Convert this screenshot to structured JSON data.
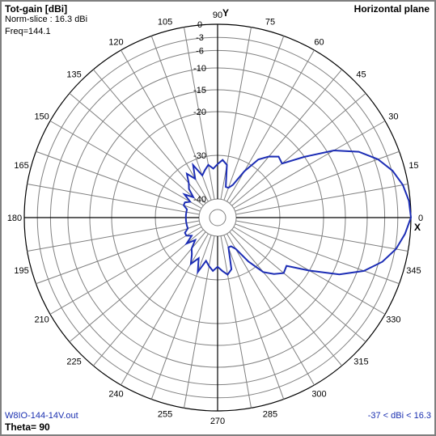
{
  "header": {
    "title": "Tot-gain [dBi]",
    "norm_slice": "Norm-slice : 16.3 dBi",
    "freq": "Freq=144.1",
    "plane": "Horizontal plane"
  },
  "footer": {
    "file": "W8IO-144-14V.out",
    "range": "-37 < dBi < 16.3",
    "theta": "Theta= 90"
  },
  "colors": {
    "pattern": "#1c2db5",
    "grid": "#808080",
    "axis": "#000000"
  },
  "chart_data": {
    "type": "polar",
    "title": "Tot-gain [dBi]",
    "plane": "Horizontal plane",
    "radial_unit": "dB relative to 16.3 dBi",
    "radial_ticks": [
      "0",
      "-3",
      "-6",
      "-10",
      "-15",
      "-20",
      "-30",
      "-40"
    ],
    "angle_ticks": [
      "0",
      "15",
      "30",
      "45",
      "60",
      "75",
      "90",
      "105",
      "120",
      "135",
      "150",
      "165",
      "180",
      "195",
      "210",
      "225",
      "240",
      "255",
      "270",
      "285",
      "300",
      "315",
      "330",
      "345"
    ],
    "axis_labels": {
      "x": "X",
      "y": "Y"
    },
    "series": [
      {
        "angles": [
          0,
          5,
          10,
          15,
          20,
          25,
          30,
          35,
          40,
          45,
          50,
          55,
          60,
          65,
          70,
          75,
          80,
          85,
          90,
          95,
          100,
          105,
          110,
          115,
          120,
          125,
          130,
          135,
          140,
          145,
          150,
          155,
          160,
          165,
          170,
          175,
          180,
          185,
          190,
          195,
          200,
          205,
          210,
          215,
          220,
          225,
          230,
          235,
          240,
          245,
          250,
          255,
          260,
          265,
          270,
          275,
          280,
          285,
          290,
          295,
          300,
          305,
          310,
          315,
          320,
          325,
          330,
          335,
          340,
          345,
          350,
          355
        ],
        "values": [
          0,
          -0.3,
          -1.2,
          -2.8,
          -5.2,
          -8.6,
          -13.5,
          -20,
          -25,
          -24.5,
          -26,
          -28,
          -32,
          -36,
          -37,
          -37,
          -32,
          -31,
          -32,
          -33,
          -32,
          -33,
          -34,
          -31,
          -34,
          -32,
          -34,
          -35,
          -37,
          -35,
          -37,
          -36,
          -36,
          -37,
          -37,
          -37,
          -37,
          -37,
          -37,
          -37,
          -37,
          -36,
          -36,
          -37,
          -35,
          -37,
          -35,
          -34,
          -32,
          -34,
          -31,
          -34,
          -33,
          -32,
          -33,
          -32,
          -31,
          -32,
          -37,
          -37,
          -36,
          -32,
          -28,
          -26,
          -24.5,
          -25,
          -20,
          -13.5,
          -8.6,
          -5.2,
          -2.8,
          -1.2
        ]
      }
    ]
  }
}
